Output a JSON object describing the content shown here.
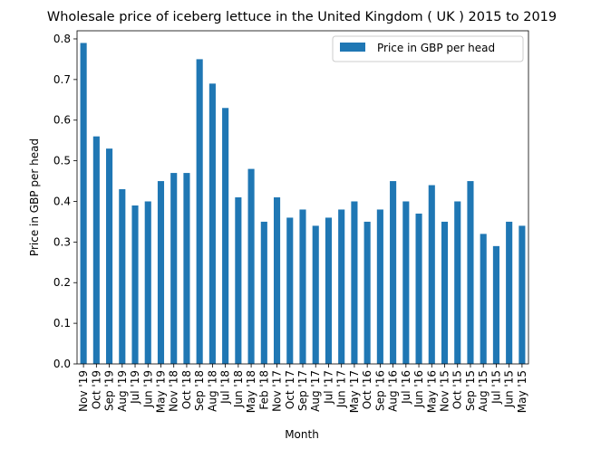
{
  "chart_data": {
    "type": "bar",
    "title": "Wholesale price of iceberg lettuce in the United Kingdom ( UK ) 2015 to 2019",
    "xlabel": "Month",
    "ylabel": "Price in GBP per head",
    "ylim": [
      0,
      0.82
    ],
    "yticks": [
      "0.0",
      "0.1",
      "0.2",
      "0.3",
      "0.4",
      "0.5",
      "0.6",
      "0.7",
      "0.8"
    ],
    "ytick_values": [
      0,
      0.1,
      0.2,
      0.3,
      0.4,
      0.5,
      0.6,
      0.7,
      0.8
    ],
    "grid": false,
    "legend_position": "top-right",
    "bar_color": "#1f77b4",
    "categories": [
      "Nov '19",
      "Oct '19",
      "Sep '19",
      "Aug '19",
      "Jul '19",
      "Jun '19",
      "May '19",
      "Nov '18",
      "Oct '18",
      "Sep '18",
      "Aug '18",
      "Jul '18",
      "Jun '18",
      "May '18",
      "Feb '18",
      "Nov '17",
      "Oct '17",
      "Sep '17",
      "Aug '17",
      "Jul '17",
      "Jun '17",
      "May '17",
      "Oct '16",
      "Sep '16",
      "Aug '16",
      "Jul '16",
      "Jun '16",
      "May '16",
      "Nov '15",
      "Oct '15",
      "Sep '15",
      "Aug '15",
      "Jul '15",
      "Jun '15",
      "May '15"
    ],
    "series": [
      {
        "name": "Price in GBP per head",
        "values": [
          0.79,
          0.56,
          0.53,
          0.43,
          0.39,
          0.4,
          0.45,
          0.47,
          0.47,
          0.75,
          0.69,
          0.63,
          0.41,
          0.48,
          0.35,
          0.41,
          0.36,
          0.38,
          0.34,
          0.36,
          0.38,
          0.4,
          0.35,
          0.38,
          0.45,
          0.4,
          0.37,
          0.44,
          0.35,
          0.4,
          0.45,
          0.32,
          0.29,
          0.35,
          0.34
        ]
      }
    ]
  }
}
